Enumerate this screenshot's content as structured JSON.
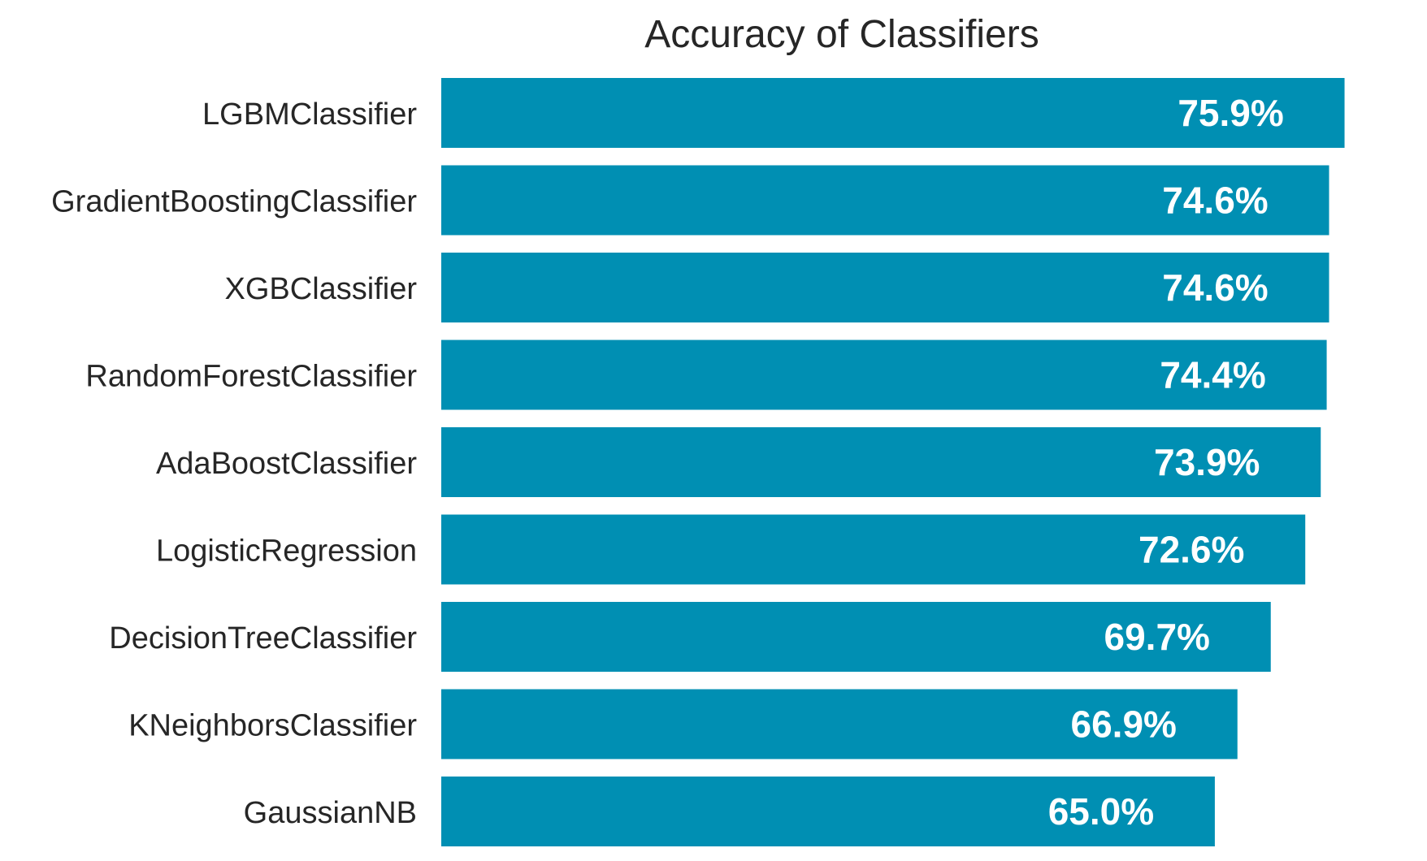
{
  "chart_data": {
    "type": "bar",
    "orientation": "horizontal",
    "title": "Accuracy of Classifiers",
    "xlabel": "",
    "ylabel": "",
    "categories": [
      "LGBMClassifier",
      "GradientBoostingClassifier",
      "XGBClassifier",
      "RandomForestClassifier",
      "AdaBoostClassifier",
      "LogisticRegression",
      "DecisionTreeClassifier",
      "KNeighborsClassifier",
      "GaussianNB"
    ],
    "values": [
      75.9,
      74.6,
      74.6,
      74.4,
      73.9,
      72.6,
      69.7,
      66.9,
      65.0
    ],
    "data_labels": [
      "75.9%",
      "74.6%",
      "74.6%",
      "74.4%",
      "73.9%",
      "72.6%",
      "69.7%",
      "66.9%",
      "65.0%"
    ],
    "xlim": [
      0,
      76
    ],
    "grid": false,
    "legend": "none",
    "colors": {
      "bar": "#008fb3",
      "label_text": "#ffffff",
      "title_text": "#262626",
      "tick_text": "#262626"
    }
  }
}
